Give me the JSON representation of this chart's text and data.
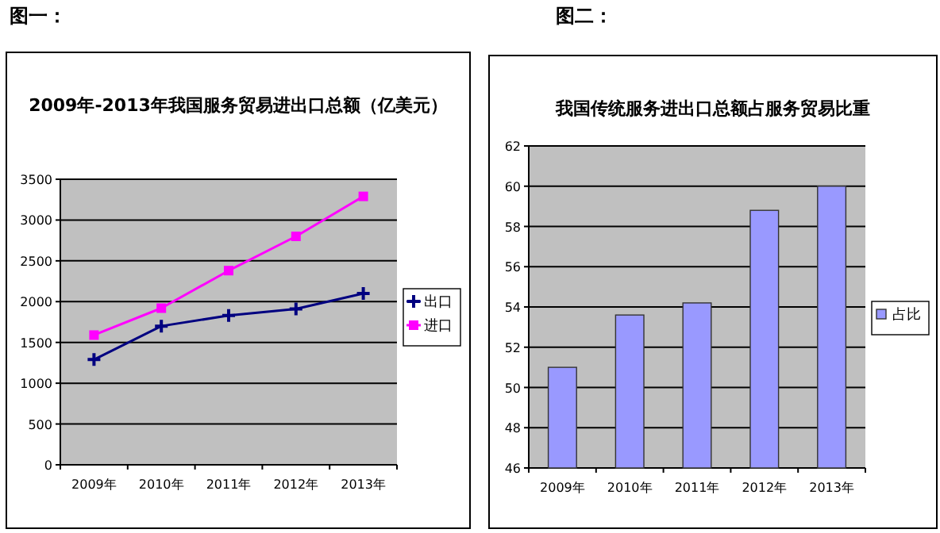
{
  "chart_data": [
    {
      "type": "line",
      "title": "2009年-2013年我国服务贸易进出口总额（亿美元）",
      "annotations": [
        "图一："
      ],
      "categories": [
        "2009年",
        "2010年",
        "2011年",
        "2012年",
        "2013年"
      ],
      "series": [
        {
          "name": "出口",
          "color": "#000080",
          "marker": "cross",
          "values": [
            1290,
            1700,
            1830,
            1910,
            2100
          ]
        },
        {
          "name": "进口",
          "color": "#ff00ff",
          "marker": "square",
          "values": [
            1590,
            1920,
            2380,
            2800,
            3290
          ]
        }
      ],
      "ylim": [
        0,
        3500
      ],
      "yticks": [
        0,
        500,
        1000,
        1500,
        2000,
        2500,
        3000,
        3500
      ],
      "grid": "y",
      "legend": "right"
    },
    {
      "type": "bar",
      "title": "我国传统服务进出口总额占服务贸易比重",
      "annotations": [
        "图二："
      ],
      "categories": [
        "2009年",
        "2010年",
        "2011年",
        "2012年",
        "2013年"
      ],
      "series": [
        {
          "name": "占比",
          "color": "#9999ff",
          "values": [
            51.0,
            53.6,
            54.2,
            58.8,
            60.0
          ]
        }
      ],
      "ylim": [
        46,
        62
      ],
      "yticks": [
        46,
        48,
        50,
        52,
        54,
        56,
        58,
        60,
        62
      ],
      "grid": "y",
      "legend": "right"
    }
  ]
}
